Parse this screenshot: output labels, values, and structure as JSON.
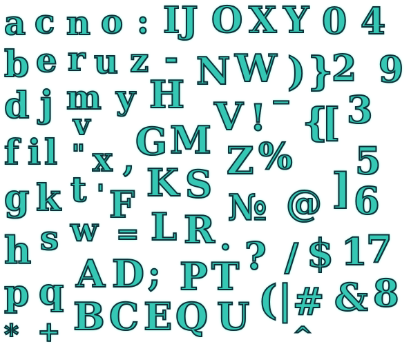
{
  "glyph_sheet": {
    "colors": {
      "fill": "#35c7b4",
      "outline": "#0e2e36",
      "glow": "#7ef2e2",
      "background": "#ffffff"
    },
    "glyphs": {
      "a": "a",
      "c": "c",
      "n": "n",
      "o": "o",
      "colon": ":",
      "I": "I",
      "J": "J",
      "O": "O",
      "X": "X",
      "Y": "Y",
      "zero": "0",
      "four": "4",
      "b": "b",
      "e": "e",
      "r": "r",
      "u": "u",
      "z": "z",
      "hyphen": "-",
      "N": "N",
      "W": "W",
      "rparen": ")",
      "rbrace": "}",
      "two": "2",
      "nine": "9",
      "d": "d",
      "j": "j",
      "m": "m",
      "y": "y",
      "H": "H",
      "underscore": "_",
      "V": "V",
      "exclaim": "!",
      "lbrace": "{",
      "lbracket": "[",
      "three": "3",
      "f": "f",
      "i": "i",
      "l": "l",
      "dquote": "\"",
      "v": "v",
      "x": "x",
      "comma": ",",
      "G": "G",
      "M": "M",
      "Z": "Z",
      "percent": "%",
      "five": "5",
      "g": "g",
      "k": "k",
      "t": "t",
      "squote": "'",
      "K": "K",
      "S": "S",
      "numero": "№",
      "at": "@",
      "rbracket": "]",
      "six": "6",
      "F": "F",
      "h": "h",
      "s": "s",
      "w": "w",
      "equals": "=",
      "L": "L",
      "R": "R",
      "period": ".",
      "question": "?",
      "slash": "/",
      "dollar": "$",
      "one": "1",
      "seven": "7",
      "p": "p",
      "q": "q",
      "A": "A",
      "D": "D",
      "semicolon": ";",
      "P": "P",
      "T": "T",
      "lparen": "(",
      "pipe": "|",
      "hash": "#",
      "ampersand": "&",
      "eight": "8",
      "asterisk": "*",
      "plus": "+",
      "B": "B",
      "C": "C",
      "E": "E",
      "Q": "Q",
      "U": "U",
      "caret": "^"
    }
  }
}
